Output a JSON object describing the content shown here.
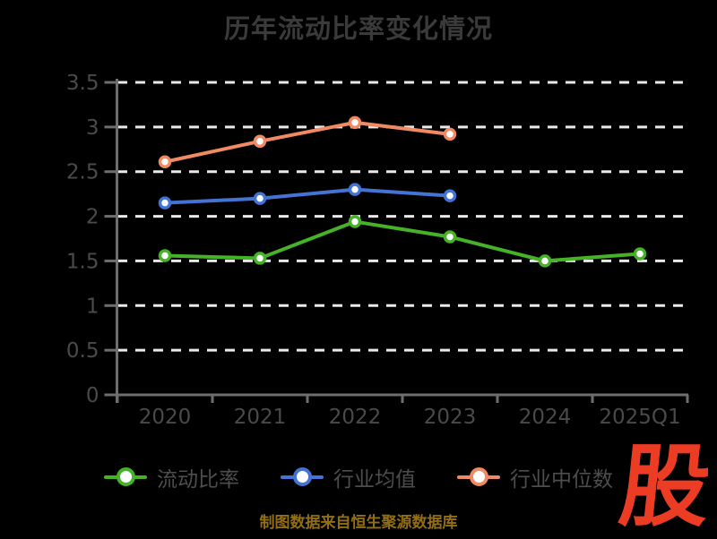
{
  "chart_data": {
    "type": "line",
    "title": "历年流动比率变化情况",
    "categories": [
      "2020",
      "2021",
      "2022",
      "2023",
      "2024",
      "2025Q1"
    ],
    "series": [
      {
        "name": "流动比率",
        "color": "#45b227",
        "values": [
          1.56,
          1.53,
          1.94,
          1.77,
          1.5,
          1.58
        ]
      },
      {
        "name": "行业均值",
        "color": "#4473d6",
        "values": [
          2.15,
          2.2,
          2.3,
          2.23,
          null,
          null
        ]
      },
      {
        "name": "行业中位数",
        "color": "#f08a62",
        "values": [
          2.61,
          2.84,
          3.05,
          2.92,
          null,
          null
        ]
      }
    ],
    "ylim": [
      0,
      3.5
    ],
    "ytick_step": 0.5,
    "ytick_labels": [
      "0",
      "0.5",
      "1",
      "1.5",
      "2",
      "2.5",
      "3",
      "3.5"
    ],
    "grid": "horizontal-dashed",
    "legend_position": "bottom",
    "colors": {
      "background": "#000000",
      "title": "#3a3a3a",
      "axis": "#6e6e6e",
      "gridline": "#e9e9e9",
      "tick_label": "#4a4a4a",
      "legend_text": "#4d4d4d",
      "marker_fill": "#ffffff"
    }
  },
  "footer": {
    "source_text": "制图数据来自恒生聚源数据库",
    "color": "#926f15"
  },
  "branding": {
    "logo_text": "股",
    "color": "#ec3c24"
  }
}
